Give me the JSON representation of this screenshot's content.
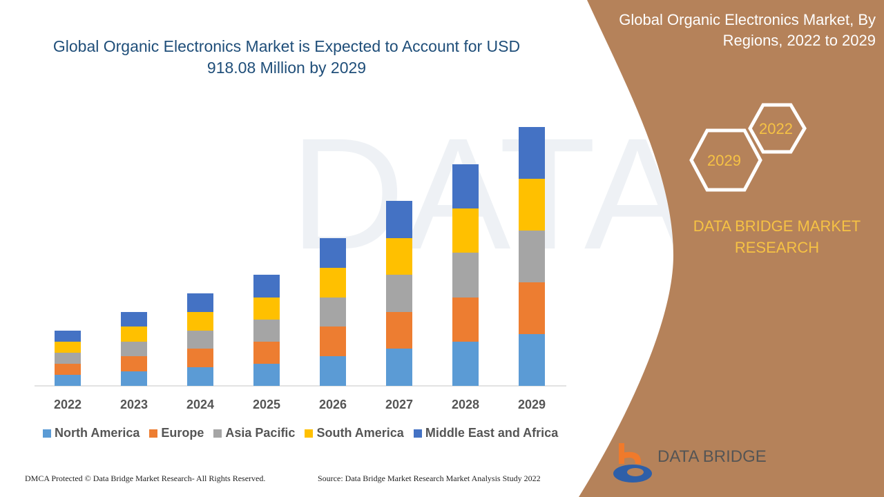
{
  "header": {
    "title": "Global Organic Electronics Market is Expected to Account for USD 918.08 Million by 2029",
    "side_title": "Global Organic Electronics Market, By Regions, 2022 to 2029"
  },
  "side_panel": {
    "hex_labels": [
      "2022",
      "2029"
    ],
    "brand_text": "DATA BRIDGE MARKET RESEARCH",
    "logo_text": "DATA BRIDGE",
    "panel_color": "#B5825A"
  },
  "footer": {
    "left": "DMCA Protected © Data Bridge Market Research- All Rights Reserved.",
    "right": "Source: Data Bridge Market Research Market Analysis Study 2022"
  },
  "chart_data": {
    "type": "bar",
    "stacked": true,
    "title": "Global Organic Electronics Market is Expected to Account for USD 918.08 Million by 2029",
    "xlabel": "",
    "ylabel": "",
    "y_axis_shown": false,
    "grid": false,
    "legend_position": "bottom",
    "categories": [
      "2022",
      "2023",
      "2024",
      "2025",
      "2026",
      "2027",
      "2028",
      "2029"
    ],
    "series": [
      {
        "name": "North America",
        "color": "#5B9BD5",
        "values": [
          16,
          21,
          27,
          32,
          43,
          54,
          64,
          75
        ]
      },
      {
        "name": "Europe",
        "color": "#ED7D31",
        "values": [
          16,
          22,
          27,
          32,
          43,
          53,
          64,
          75
        ]
      },
      {
        "name": "Asia Pacific",
        "color": "#A5A5A5",
        "values": [
          16,
          21,
          26,
          32,
          42,
          54,
          65,
          75
        ]
      },
      {
        "name": "South America",
        "color": "#FFC000",
        "values": [
          16,
          22,
          27,
          32,
          43,
          53,
          64,
          75
        ]
      },
      {
        "name": "Middle East and Africa",
        "color": "#4472C4",
        "values": [
          16,
          21,
          27,
          33,
          43,
          54,
          64,
          75
        ]
      }
    ]
  }
}
